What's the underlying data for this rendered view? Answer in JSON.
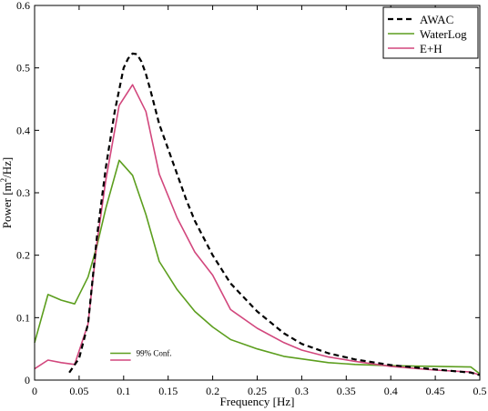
{
  "chart_data": {
    "type": "line",
    "title": "",
    "xlabel": "Frequency [Hz]",
    "ylabel_prefix": "Power [m",
    "ylabel_sup": "2",
    "ylabel_suffix": "/Hz]",
    "xlim": [
      0,
      0.5
    ],
    "ylim": [
      0,
      0.6
    ],
    "xticks": [
      0,
      0.05,
      0.1,
      0.15,
      0.2,
      0.25,
      0.3,
      0.35,
      0.4,
      0.45,
      0.5
    ],
    "xtick_labels": [
      "0",
      "0.05",
      "0.1",
      "0.15",
      "0.2",
      "0.25",
      "0.3",
      "0.35",
      "0.4",
      "0.45",
      "0.5"
    ],
    "yticks": [
      0,
      0.1,
      0.2,
      0.3,
      0.4,
      0.5,
      0.6
    ],
    "ytick_labels": [
      "0",
      "0.1",
      "0.2",
      "0.3",
      "0.4",
      "0.5",
      "0.6"
    ],
    "grid": false,
    "legend_position": "top-right",
    "series": [
      {
        "name": "AWAC",
        "color": "#000000",
        "dash": true,
        "x": [
          0.039,
          0.05,
          0.06,
          0.07,
          0.08,
          0.09,
          0.1,
          0.105,
          0.11,
          0.115,
          0.12,
          0.125,
          0.13,
          0.14,
          0.15,
          0.16,
          0.17,
          0.18,
          0.2,
          0.22,
          0.25,
          0.28,
          0.3,
          0.33,
          0.36,
          0.4,
          0.45,
          0.49,
          0.5
        ],
        "y": [
          0.012,
          0.035,
          0.09,
          0.23,
          0.34,
          0.43,
          0.5,
          0.515,
          0.523,
          0.522,
          0.51,
          0.49,
          0.465,
          0.41,
          0.37,
          0.33,
          0.29,
          0.255,
          0.2,
          0.155,
          0.11,
          0.075,
          0.058,
          0.043,
          0.033,
          0.024,
          0.017,
          0.012,
          0.008
        ]
      },
      {
        "name": "WaterLog",
        "color": "#5c9e1e",
        "dash": false,
        "x": [
          0,
          0.015,
          0.03,
          0.045,
          0.06,
          0.07,
          0.08,
          0.095,
          0.11,
          0.125,
          0.14,
          0.16,
          0.18,
          0.2,
          0.22,
          0.25,
          0.28,
          0.3,
          0.33,
          0.36,
          0.4,
          0.45,
          0.49,
          0.5
        ],
        "y": [
          0.06,
          0.137,
          0.128,
          0.122,
          0.165,
          0.215,
          0.275,
          0.352,
          0.328,
          0.265,
          0.19,
          0.145,
          0.11,
          0.085,
          0.065,
          0.05,
          0.038,
          0.034,
          0.028,
          0.025,
          0.023,
          0.022,
          0.021,
          0.01
        ]
      },
      {
        "name": "E+H",
        "color": "#d2477d",
        "dash": false,
        "x": [
          0,
          0.015,
          0.03,
          0.045,
          0.06,
          0.07,
          0.08,
          0.095,
          0.11,
          0.125,
          0.14,
          0.16,
          0.18,
          0.2,
          0.22,
          0.25,
          0.28,
          0.3,
          0.33,
          0.36,
          0.4,
          0.45,
          0.49,
          0.5
        ],
        "y": [
          0.018,
          0.032,
          0.028,
          0.025,
          0.09,
          0.22,
          0.32,
          0.44,
          0.473,
          0.43,
          0.33,
          0.26,
          0.205,
          0.168,
          0.113,
          0.083,
          0.06,
          0.048,
          0.037,
          0.03,
          0.022,
          0.016,
          0.013,
          0.008
        ]
      }
    ],
    "annotation": {
      "label": "99% Conf.",
      "x_range": [
        0.085,
        0.108
      ],
      "y_values": [
        0.043,
        0.032
      ],
      "colors": [
        "#5c9e1e",
        "#d2477d"
      ]
    }
  }
}
